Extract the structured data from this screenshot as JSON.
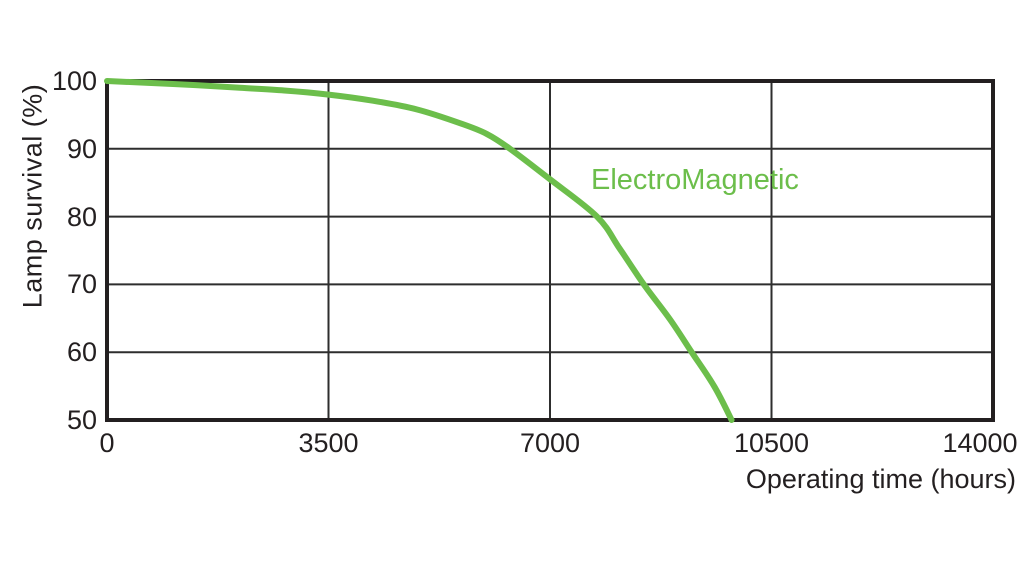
{
  "chart_data": {
    "type": "line",
    "title": "",
    "xlabel": "Operating time (hours)",
    "ylabel": "Lamp survival (%)",
    "x_axis": {
      "min": 0,
      "max": 14000,
      "ticks": [
        0,
        3500,
        7000,
        10500,
        14000
      ]
    },
    "y_axis": {
      "min": 50,
      "max": 100,
      "ticks": [
        50,
        60,
        70,
        80,
        90,
        100
      ]
    },
    "grid": true,
    "legend_position": "annotation-inside-plot",
    "series": [
      {
        "name": "ElectroMagnetic",
        "color": "#6CBE4B",
        "points": [
          [
            0,
            100
          ],
          [
            700,
            99.7
          ],
          [
            1400,
            99.4
          ],
          [
            2100,
            99.0
          ],
          [
            2800,
            98.6
          ],
          [
            3500,
            98.0
          ],
          [
            4200,
            97.1
          ],
          [
            4900,
            95.8
          ],
          [
            5600,
            93.7
          ],
          [
            6000,
            92.2
          ],
          [
            6368,
            90
          ],
          [
            7000,
            85.5
          ],
          [
            7743,
            80
          ],
          [
            8100,
            75.3
          ],
          [
            8482,
            70
          ],
          [
            8900,
            64.8
          ],
          [
            9239,
            60
          ],
          [
            9600,
            54.9
          ],
          [
            9870,
            50
          ]
        ]
      }
    ]
  },
  "colors": {
    "background": "#ffffff",
    "axis_border": "#231f20",
    "gridline": "#2e2e2e",
    "text": "#231f20",
    "series_green": "#6CBE4B"
  }
}
